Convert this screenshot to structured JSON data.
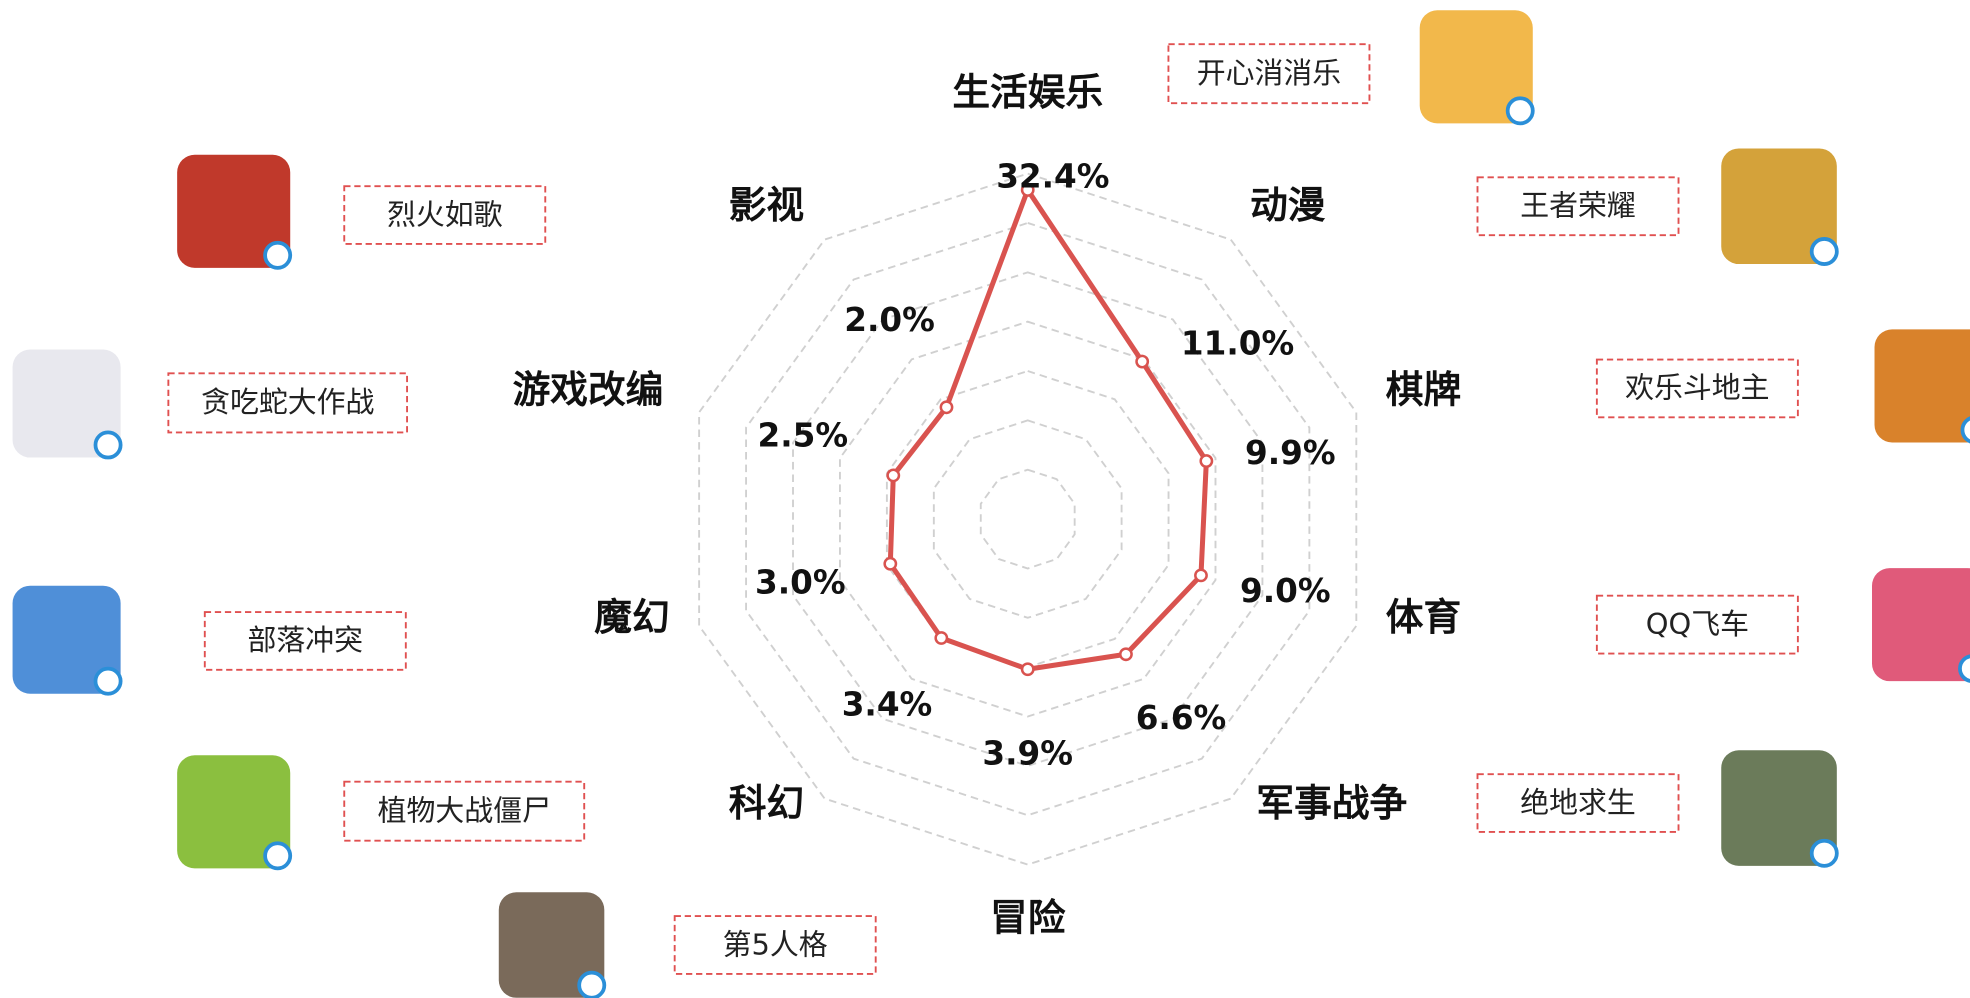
{
  "chart_data": {
    "type": "radar",
    "categories": [
      "生活娱乐",
      "动漫",
      "棋牌",
      "体育",
      "军事战争",
      "冒险",
      "科幻",
      "魔幻",
      "游戏改编",
      "影视"
    ],
    "values": [
      32.4,
      11.0,
      9.9,
      9.0,
      6.6,
      3.9,
      3.4,
      3.0,
      2.5,
      2.0
    ],
    "value_labels": [
      "32.4%",
      "11.0%",
      "9.9%",
      "9.0%",
      "6.6%",
      "3.9%",
      "3.4%",
      "3.0%",
      "2.5%",
      "2.0%"
    ],
    "color": "#d9534f",
    "rlim": [
      -20,
      35
    ],
    "grid": true
  },
  "games": [
    "开心消消乐",
    "烈火如歌",
    "王者荣耀",
    "贪吃蛇大作战",
    "欢乐斗地主",
    "部落冲突",
    "QQ飞车",
    "植物大战僵尸",
    "绝地求生",
    "第5人格"
  ]
}
